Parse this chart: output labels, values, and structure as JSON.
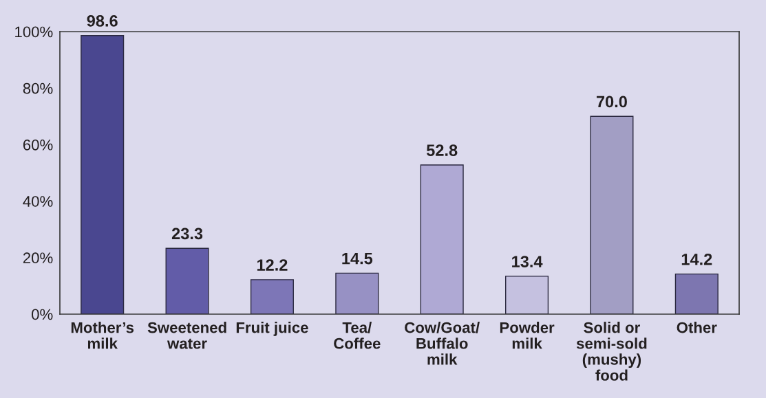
{
  "chart_data": {
    "type": "bar",
    "categories": [
      "Mother’s\nmilk",
      "Sweetened\nwater",
      "Fruit juice",
      "Tea/\nCoffee",
      "Cow/Goat/\nBuffalo\nmilk",
      "Powder\nmilk",
      "Solid or\nsemi-sold\n(mushy)\nfood",
      "Other"
    ],
    "values": [
      98.6,
      23.3,
      12.2,
      14.5,
      52.8,
      13.4,
      70.0,
      14.2
    ],
    "value_labels": [
      "98.6",
      "23.3",
      "12.2",
      "14.5",
      "52.8",
      "13.4",
      "70.0",
      "14.2"
    ],
    "colors": [
      "#4a4790",
      "#625ca8",
      "#7d76b7",
      "#9791c4",
      "#afa9d4",
      "#c5c1e0",
      "#a29ec4",
      "#7d76b0"
    ],
    "ylim": [
      0,
      100
    ],
    "yticks": [
      {
        "value": 0,
        "label": "0%"
      },
      {
        "value": 20,
        "label": "20%"
      },
      {
        "value": 40,
        "label": "40%"
      },
      {
        "value": 60,
        "label": "60%"
      },
      {
        "value": 80,
        "label": "80%"
      },
      {
        "value": 100,
        "label": "100%"
      }
    ]
  }
}
